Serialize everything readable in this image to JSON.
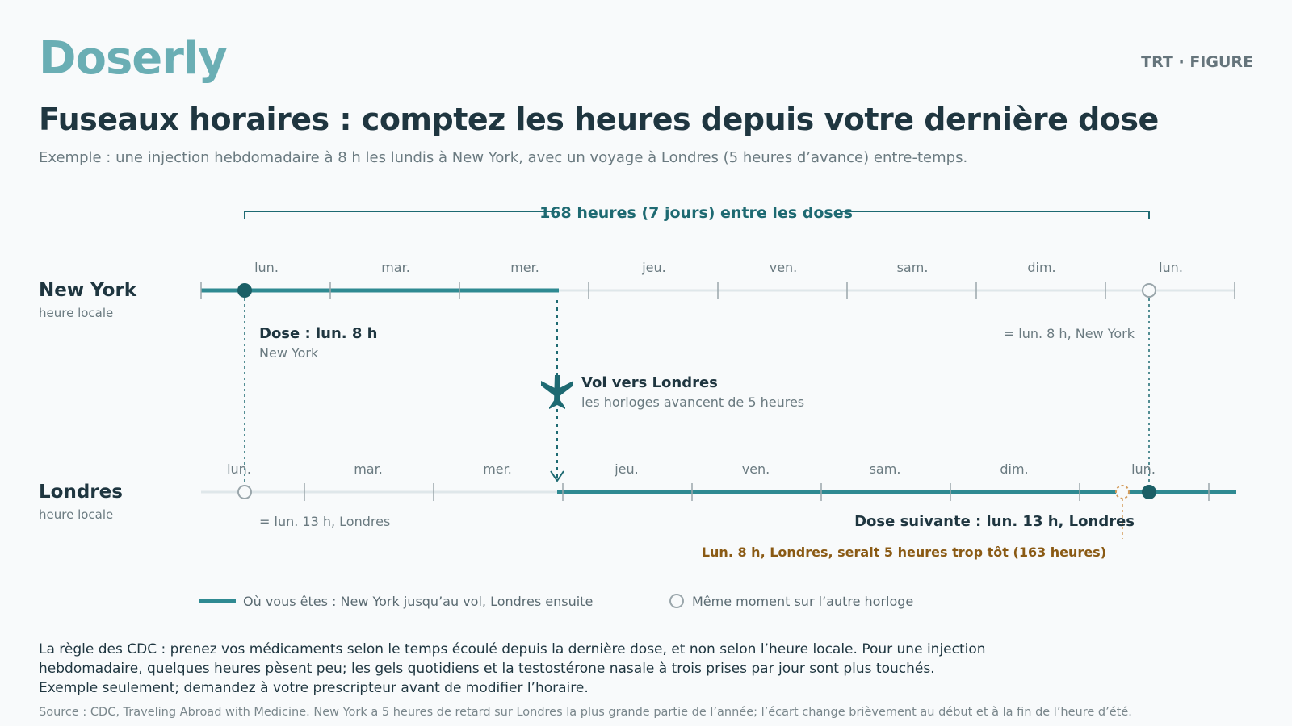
{
  "header": {
    "logo": "Doserly",
    "tag": "TRT · FIGURE",
    "title": "Fuseaux horaires : comptez les heures depuis votre dernière dose",
    "subtitle": "Exemple : une injection hebdomadaire à 8 h les lundis à New York, avec un voyage à Londres (5 heures d’avance) entre-temps."
  },
  "span_label": "168 heures (7 jours) entre les doses",
  "timelines": {
    "new_york": {
      "label": "New York",
      "sublabel": "heure locale",
      "days": [
        "lun.",
        "mar.",
        "mer.",
        "jeu.",
        "ven.",
        "sam.",
        "dim.",
        "lun."
      ]
    },
    "london": {
      "label": "Londres",
      "sublabel": "heure locale",
      "days": [
        "lun.",
        "mar.",
        "mer.",
        "jeu.",
        "ven.",
        "sam.",
        "dim.",
        "lun."
      ]
    }
  },
  "annotations": {
    "dose_title": "Dose : lun. 8 h",
    "dose_place": "New York",
    "ny_equiv": "= lun. 8 h, New York",
    "flight_title": "Vol vers Londres",
    "flight_sub": "les horloges avancent de 5 heures",
    "london_equiv": "= lun. 13 h, Londres",
    "next_dose": "Dose suivante : lun. 13 h, Londres",
    "warning": "Lun. 8 h, Londres, serait 5 heures trop tôt (163 heures)"
  },
  "legend": {
    "line": "Où vous êtes : New York jusqu’au vol, Londres ensuite",
    "circle": "Même moment sur l’autre horloge"
  },
  "footer": {
    "rule_lines": [
      "La règle des CDC : prenez vos médicaments selon le temps écoulé depuis la dernière dose, et non selon l’heure locale. Pour une injection",
      "hebdomadaire, quelques heures pèsent peu; les gels quotidiens et la testostérone nasale à trois prises par jour sont plus touchés.",
      "Exemple seulement; demandez à votre prescripteur avant de modifier l’horaire."
    ],
    "source": "Source : CDC, Traveling Abroad with Medicine. New York a 5 heures de retard sur Londres la plus grande partie de l’année; l’écart change brièvement au début et à la fin de l’heure d’été."
  },
  "colors": {
    "teal": "#2f8a92",
    "dark_teal": "#1e6a72",
    "dot": "#1b5f66",
    "track": "#dfe7ea",
    "grey": "#7d8a90",
    "warning": "#8a5a14",
    "warning_dot": "#d49b5a"
  }
}
